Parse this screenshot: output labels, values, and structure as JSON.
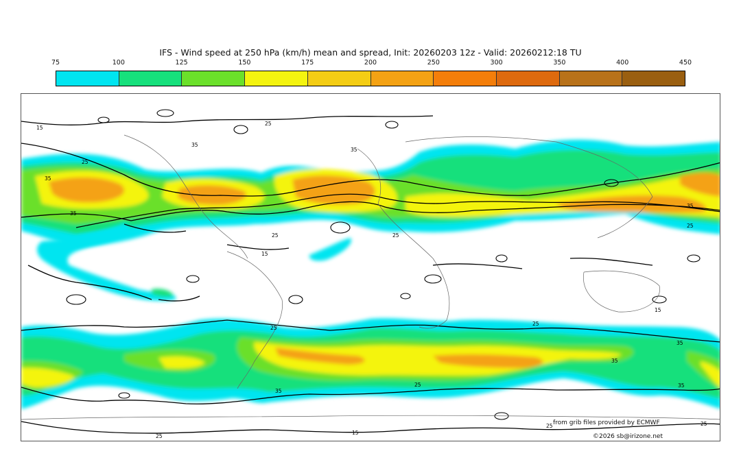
{
  "title": "IFS - Wind speed at 250 hPa (km/h) mean and spread, Init: 20260203 12z - Valid: 20260212:18 TU",
  "colorbar": {
    "labels": [
      "75",
      "100",
      "125",
      "150",
      "175",
      "200",
      "250",
      "300",
      "350",
      "400",
      "450"
    ],
    "colors": [
      "#00e5f0",
      "#16e07c",
      "#6be02a",
      "#f4f40f",
      "#f4cd14",
      "#f4a214",
      "#f47e0a",
      "#de6a0e",
      "#b8721a",
      "#9a5f10"
    ]
  },
  "contour_labels": [
    "15",
    "25",
    "35"
  ],
  "credits": {
    "source": "from grib files provided by ECMWF",
    "copyright": "©2026 sb@irizone.net"
  }
}
